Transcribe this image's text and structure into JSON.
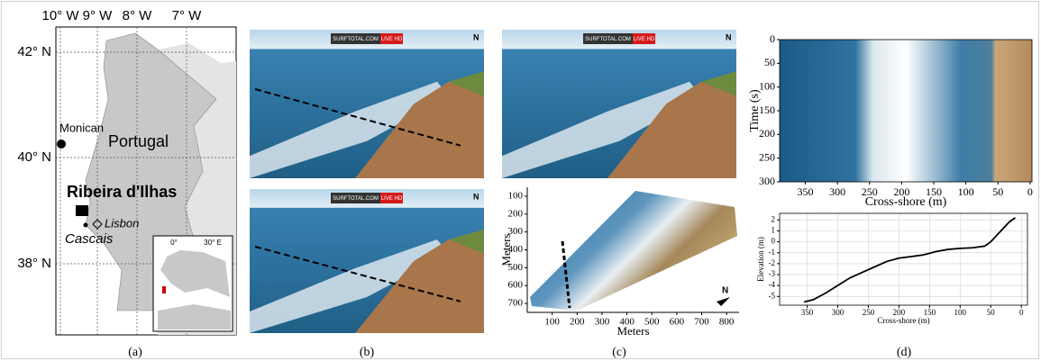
{
  "map": {
    "lon_labels": [
      "10° W",
      "9° W",
      "8° W",
      "7° W"
    ],
    "lat_labels": [
      "42° N",
      "40° N",
      "38° N"
    ],
    "places": {
      "monican": "Monican",
      "country": "Portugal",
      "site": "Ribeira d'Ilhas",
      "lisbon": "Lisbon",
      "cascais": "Cascais"
    },
    "inset_labels": [
      "0°",
      "30° E"
    ]
  },
  "photos": [
    {
      "banner": "SURFTOTAL.COM",
      "live": "LIVE HD",
      "north": "N"
    },
    {
      "banner": "SURFTOTAL.COM",
      "live": "LIVE HD",
      "north": "N"
    },
    {
      "banner": "SURFTOTAL.COM",
      "live": "LIVE HD",
      "north": "N"
    }
  ],
  "rectified_north": "N",
  "captions": [
    "(a)",
    "(b)",
    "(c)",
    "(d)"
  ],
  "chart_data": [
    {
      "type": "image",
      "xlabel": "Meters",
      "ylabel": "Meters",
      "xlim": [
        0,
        850
      ],
      "xticks": [
        100,
        200,
        300,
        400,
        500,
        600,
        700,
        800
      ],
      "ylim": [
        750,
        50
      ],
      "yticks": [
        100,
        200,
        300,
        400,
        500,
        600,
        700
      ],
      "grid": false
    },
    {
      "type": "image",
      "xlabel": "Cross-shore (m)",
      "ylabel": "Time (s)",
      "xlim": [
        390,
        -3
      ],
      "xticks": [
        350,
        300,
        250,
        200,
        150,
        100,
        50,
        0
      ],
      "ylim": [
        300,
        0
      ],
      "yticks": [
        0,
        50,
        100,
        150,
        200,
        250,
        300
      ],
      "grid": false
    },
    {
      "type": "line",
      "xlabel": "Cross-shore (m)",
      "ylabel": "Elevation (m)",
      "color": "#000000",
      "x": [
        355,
        340,
        320,
        300,
        280,
        260,
        240,
        220,
        200,
        180,
        160,
        140,
        120,
        100,
        80,
        60,
        50,
        40,
        30,
        20,
        10
      ],
      "values": [
        -5.5,
        -5.3,
        -4.7,
        -4.0,
        -3.3,
        -2.8,
        -2.3,
        -1.8,
        -1.5,
        -1.35,
        -1.2,
        -0.9,
        -0.7,
        -0.6,
        -0.55,
        -0.4,
        0,
        0.6,
        1.2,
        1.8,
        2.2
      ],
      "xlim": [
        395,
        -10
      ],
      "xticks": [
        350,
        300,
        250,
        200,
        150,
        100,
        50,
        0
      ],
      "ylim": [
        -5.8,
        2.6
      ],
      "yticks": [
        -5,
        -4,
        -3,
        -2,
        -1,
        0,
        1,
        2
      ],
      "grid": true
    }
  ]
}
